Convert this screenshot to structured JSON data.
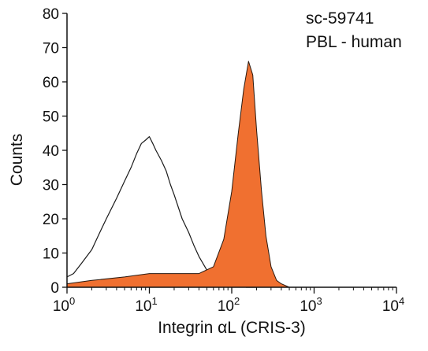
{
  "chart_data": {
    "type": "area",
    "xlabel": "Integrin αL (CRIS-3)",
    "ylabel": "Counts",
    "x_scale": "log",
    "xlim": [
      1,
      10000
    ],
    "ylim": [
      0,
      80
    ],
    "grid": false,
    "annotations": [
      "sc-59741",
      "PBL - human"
    ],
    "x_ticks": [
      {
        "value": 1,
        "base": "10",
        "exp": "0"
      },
      {
        "value": 10,
        "base": "10",
        "exp": "1"
      },
      {
        "value": 100,
        "base": "10",
        "exp": "2"
      },
      {
        "value": 1000,
        "base": "10",
        "exp": "3"
      },
      {
        "value": 10000,
        "base": "10",
        "exp": "4"
      }
    ],
    "y_ticks": [
      "0",
      "10",
      "20",
      "30",
      "40",
      "50",
      "60",
      "70",
      "80"
    ],
    "series": [
      {
        "style": "outline",
        "color": "#1a1a1a",
        "x": [
          1.0,
          1.2,
          1.5,
          2.0,
          2.5,
          3.0,
          4.0,
          5.0,
          6.0,
          7.0,
          8.0,
          9.0,
          10.0,
          11.0,
          12.0,
          14.0,
          16.0,
          18.0,
          20.0,
          25.0,
          30.0,
          35.0,
          40.0,
          50.0,
          60.0,
          80.0,
          100.0,
          150.0,
          200.0
        ],
        "y": [
          3,
          4,
          7,
          11,
          16,
          20,
          26,
          31,
          35,
          39,
          42,
          43,
          44,
          42,
          40,
          37,
          34,
          30,
          27,
          20,
          16,
          12,
          9,
          5,
          3,
          2,
          1,
          0,
          0
        ]
      },
      {
        "style": "filled",
        "color": "#f07030",
        "x": [
          1.0,
          2.0,
          5.0,
          10.0,
          20.0,
          40.0,
          60.0,
          80.0,
          100.0,
          120.0,
          140.0,
          160.0,
          180.0,
          200.0,
          230.0,
          260.0,
          300.0,
          350.0,
          400.0,
          500.0
        ],
        "y": [
          1,
          2,
          3,
          4,
          4,
          4,
          6,
          14,
          28,
          45,
          58,
          66,
          62,
          46,
          28,
          15,
          6,
          2,
          1,
          0
        ]
      }
    ]
  }
}
